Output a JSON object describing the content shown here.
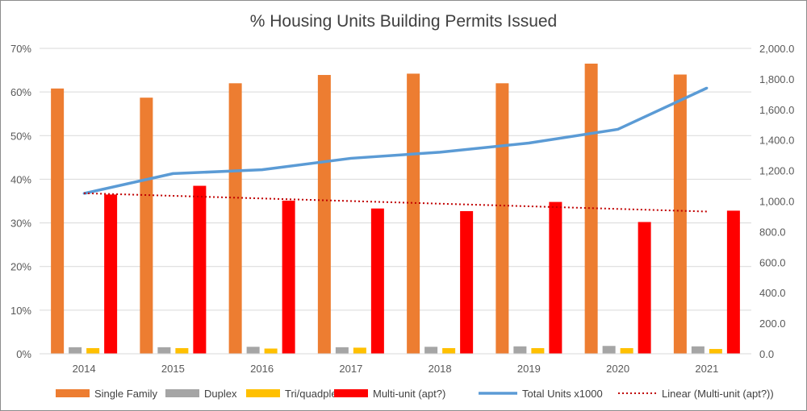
{
  "chart_data": {
    "type": "bar",
    "title": "% Housing Units Building Permits Issued",
    "categories": [
      "2014",
      "2015",
      "2016",
      "2017",
      "2018",
      "2019",
      "2020",
      "2021"
    ],
    "series": [
      {
        "name": "Single Family",
        "kind": "bar",
        "axis": "left",
        "color": "#ED7D31",
        "values": [
          0.608,
          0.587,
          0.62,
          0.639,
          0.642,
          0.62,
          0.665,
          0.64
        ]
      },
      {
        "name": "Duplex",
        "kind": "bar",
        "axis": "left",
        "color": "#A5A5A5",
        "values": [
          0.015,
          0.015,
          0.016,
          0.015,
          0.016,
          0.017,
          0.018,
          0.017
        ]
      },
      {
        "name": "Tri/quadplex",
        "kind": "bar",
        "axis": "left",
        "color": "#FFC000",
        "values": [
          0.013,
          0.013,
          0.012,
          0.014,
          0.013,
          0.013,
          0.013,
          0.011
        ]
      },
      {
        "name": "Multi-unit (apt?)",
        "kind": "bar",
        "axis": "left",
        "color": "#FF0000",
        "values": [
          0.365,
          0.385,
          0.351,
          0.333,
          0.327,
          0.348,
          0.302,
          0.328
        ]
      },
      {
        "name": "Total Units x1000",
        "kind": "line",
        "axis": "right",
        "color": "#5B9BD5",
        "values": [
          1050,
          1180,
          1205,
          1280,
          1320,
          1380,
          1470,
          1740
        ]
      },
      {
        "name": "Linear (Multi-unit (apt?))",
        "kind": "trendline",
        "axis": "left",
        "color": "#C00000",
        "values": [
          0.368,
          0.362,
          0.356,
          0.35,
          0.344,
          0.338,
          0.332,
          0.326
        ]
      }
    ],
    "y_left": {
      "min": 0,
      "max": 0.7,
      "step": 0.1,
      "ticks": [
        "0%",
        "10%",
        "20%",
        "30%",
        "40%",
        "50%",
        "60%",
        "70%"
      ]
    },
    "y_right": {
      "min": 0,
      "max": 2000,
      "step": 200,
      "ticks": [
        "0.0",
        "200.0",
        "400.0",
        "600.0",
        "800.0",
        "1,000.0",
        "1,200.0",
        "1,400.0",
        "1,600.0",
        "1,800.0",
        "2,000.0"
      ]
    },
    "grid": true,
    "legend_position": "bottom"
  }
}
